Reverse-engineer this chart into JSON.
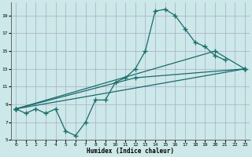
{
  "xlabel": "Humidex (Indice chaleur)",
  "bg_color": "#cce8e8",
  "grid_color": "#aaaacc",
  "line_color": "#1a6b6b",
  "xlim": [
    -0.5,
    23.5
  ],
  "ylim": [
    5,
    20.5
  ],
  "xticks": [
    0,
    1,
    2,
    3,
    4,
    5,
    6,
    7,
    8,
    9,
    10,
    11,
    12,
    13,
    14,
    15,
    16,
    17,
    18,
    19,
    20,
    21,
    22,
    23
  ],
  "yticks": [
    5,
    7,
    9,
    11,
    13,
    15,
    17,
    19
  ],
  "line1_x": [
    0,
    1,
    2,
    3,
    4,
    5,
    6,
    7,
    8,
    9,
    10,
    11,
    12,
    13,
    14,
    15,
    16,
    17,
    18,
    19,
    20,
    21
  ],
  "line1_y": [
    8.5,
    8.0,
    8.5,
    8.0,
    8.5,
    6.0,
    5.5,
    7.0,
    9.5,
    9.5,
    11.5,
    12.0,
    13.0,
    15.0,
    19.5,
    19.7,
    19.0,
    17.5,
    16.0,
    15.5,
    14.5,
    14.0
  ],
  "line2_x": [
    0,
    20,
    23
  ],
  "line2_y": [
    8.5,
    15.0,
    13.0
  ],
  "line3_x": [
    0,
    12,
    23
  ],
  "line3_y": [
    8.5,
    12.0,
    13.0
  ],
  "line4_x": [
    0,
    23
  ],
  "line4_y": [
    8.5,
    13.0
  ]
}
